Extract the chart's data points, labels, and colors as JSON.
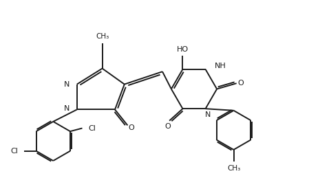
{
  "bg_color": "#ffffff",
  "line_color": "#1a1a1a",
  "bond_lw": 1.4,
  "figsize": [
    4.49,
    2.59
  ],
  "dpi": 100,
  "xlim": [
    0,
    9.0
  ],
  "ylim": [
    0.2,
    5.8
  ]
}
